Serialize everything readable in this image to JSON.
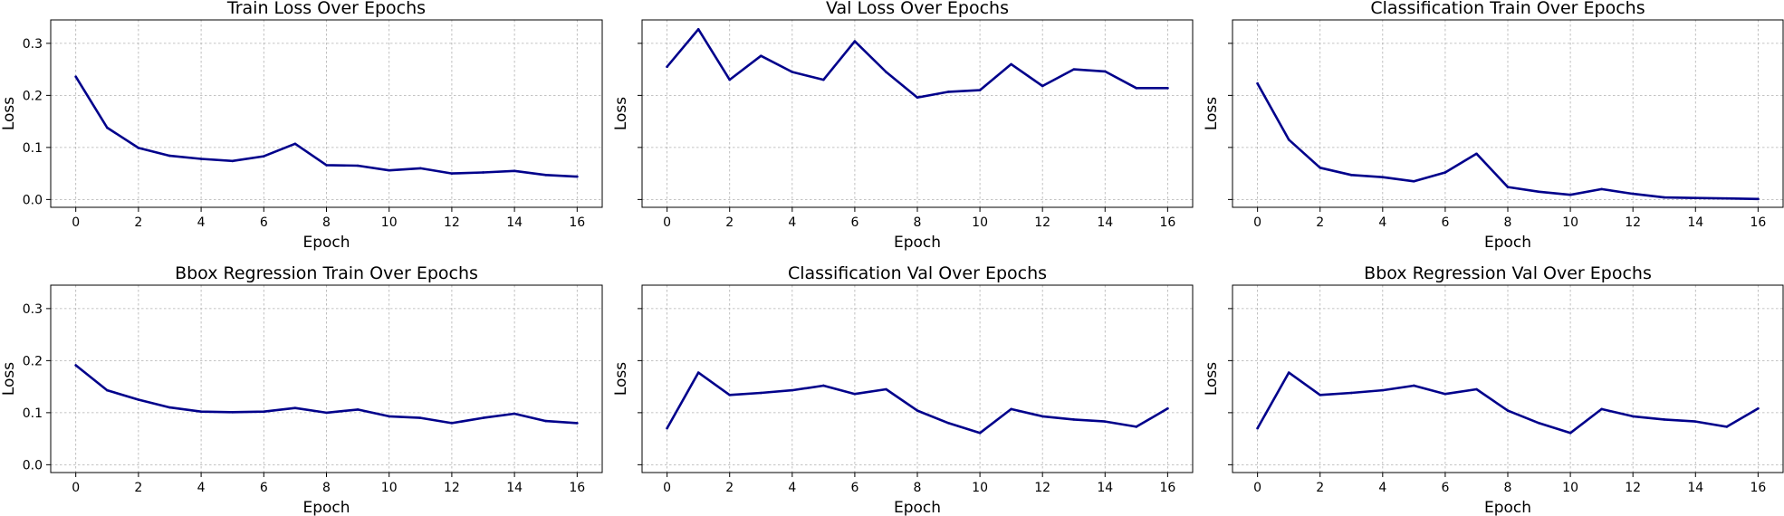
{
  "colors": {
    "line": "#00008b",
    "grid": "#b0b0b0"
  },
  "chart_data": [
    {
      "type": "line",
      "title": "Train Loss Over Epochs",
      "xlabel": "Epoch",
      "ylabel": "Loss",
      "xlim": [
        -0.8,
        16.8
      ],
      "ylim": [
        -0.015,
        0.345
      ],
      "xticks": [
        "0",
        "2",
        "4",
        "6",
        "8",
        "10",
        "12",
        "14",
        "16"
      ],
      "yticks": [
        "0.0",
        "0.1",
        "0.2",
        "0.3"
      ],
      "show_ytick_labels": true,
      "grid": true,
      "x": [
        0,
        1,
        2,
        3,
        4,
        5,
        6,
        7,
        8,
        9,
        10,
        11,
        12,
        13,
        14,
        15,
        16
      ],
      "values": [
        0.236,
        0.138,
        0.099,
        0.084,
        0.078,
        0.074,
        0.083,
        0.107,
        0.066,
        0.065,
        0.056,
        0.06,
        0.05,
        0.052,
        0.055,
        0.047,
        0.044
      ]
    },
    {
      "type": "line",
      "title": "Val Loss Over Epochs",
      "xlabel": "Epoch",
      "ylabel": "Loss",
      "xlim": [
        -0.8,
        16.8
      ],
      "ylim": [
        -0.015,
        0.345
      ],
      "xticks": [
        "0",
        "2",
        "4",
        "6",
        "8",
        "10",
        "12",
        "14",
        "16"
      ],
      "yticks": [
        "0.0",
        "0.1",
        "0.2",
        "0.3"
      ],
      "show_ytick_labels": false,
      "grid": true,
      "x": [
        0,
        1,
        2,
        3,
        4,
        5,
        6,
        7,
        8,
        9,
        10,
        11,
        12,
        13,
        14,
        15,
        16
      ],
      "values": [
        0.255,
        0.327,
        0.23,
        0.276,
        0.245,
        0.23,
        0.304,
        0.245,
        0.196,
        0.207,
        0.21,
        0.26,
        0.218,
        0.25,
        0.246,
        0.214,
        0.214
      ]
    },
    {
      "type": "line",
      "title": "Classification Train Over Epochs",
      "xlabel": "Epoch",
      "ylabel": "Loss",
      "xlim": [
        -0.8,
        16.8
      ],
      "ylim": [
        -0.015,
        0.345
      ],
      "xticks": [
        "0",
        "2",
        "4",
        "6",
        "8",
        "10",
        "12",
        "14",
        "16"
      ],
      "yticks": [
        "0.0",
        "0.1",
        "0.2",
        "0.3"
      ],
      "show_ytick_labels": false,
      "grid": true,
      "x": [
        0,
        1,
        2,
        3,
        4,
        5,
        6,
        7,
        8,
        9,
        10,
        11,
        12,
        13,
        14,
        15,
        16
      ],
      "values": [
        0.223,
        0.115,
        0.061,
        0.047,
        0.043,
        0.035,
        0.052,
        0.088,
        0.024,
        0.015,
        0.009,
        0.02,
        0.011,
        0.004,
        0.003,
        0.002,
        0.001
      ]
    },
    {
      "type": "line",
      "title": "Bbox Regression Train Over Epochs",
      "xlabel": "Epoch",
      "ylabel": "Loss",
      "xlim": [
        -0.8,
        16.8
      ],
      "ylim": [
        -0.015,
        0.345
      ],
      "xticks": [
        "0",
        "2",
        "4",
        "6",
        "8",
        "10",
        "12",
        "14",
        "16"
      ],
      "yticks": [
        "0.0",
        "0.1",
        "0.2",
        "0.3"
      ],
      "show_ytick_labels": true,
      "grid": true,
      "x": [
        0,
        1,
        2,
        3,
        4,
        5,
        6,
        7,
        8,
        9,
        10,
        11,
        12,
        13,
        14,
        15,
        16
      ],
      "values": [
        0.191,
        0.143,
        0.125,
        0.11,
        0.102,
        0.101,
        0.102,
        0.109,
        0.1,
        0.106,
        0.093,
        0.09,
        0.08,
        0.09,
        0.098,
        0.084,
        0.08
      ]
    },
    {
      "type": "line",
      "title": "Classification Val Over Epochs",
      "xlabel": "Epoch",
      "ylabel": "Loss",
      "xlim": [
        -0.8,
        16.8
      ],
      "ylim": [
        -0.015,
        0.345
      ],
      "xticks": [
        "0",
        "2",
        "4",
        "6",
        "8",
        "10",
        "12",
        "14",
        "16"
      ],
      "yticks": [
        "0.0",
        "0.1",
        "0.2",
        "0.3"
      ],
      "show_ytick_labels": false,
      "grid": true,
      "x": [
        0,
        1,
        2,
        3,
        4,
        5,
        6,
        7,
        8,
        9,
        10,
        11,
        12,
        13,
        14,
        15,
        16
      ],
      "values": [
        0.07,
        0.177,
        0.134,
        0.138,
        0.143,
        0.152,
        0.136,
        0.145,
        0.104,
        0.08,
        0.061,
        0.107,
        0.093,
        0.087,
        0.083,
        0.073,
        0.108
      ]
    },
    {
      "type": "line",
      "title": "Bbox Regression Val Over Epochs",
      "xlabel": "Epoch",
      "ylabel": "Loss",
      "xlim": [
        -0.8,
        16.8
      ],
      "ylim": [
        -0.015,
        0.345
      ],
      "xticks": [
        "0",
        "2",
        "4",
        "6",
        "8",
        "10",
        "12",
        "14",
        "16"
      ],
      "yticks": [
        "0.0",
        "0.1",
        "0.2",
        "0.3"
      ],
      "show_ytick_labels": false,
      "grid": true,
      "x": [
        0,
        1,
        2,
        3,
        4,
        5,
        6,
        7,
        8,
        9,
        10,
        11,
        12,
        13,
        14,
        15,
        16
      ],
      "values": [
        0.07,
        0.177,
        0.134,
        0.138,
        0.143,
        0.152,
        0.136,
        0.145,
        0.104,
        0.08,
        0.061,
        0.107,
        0.093,
        0.087,
        0.083,
        0.073,
        0.108
      ]
    }
  ]
}
